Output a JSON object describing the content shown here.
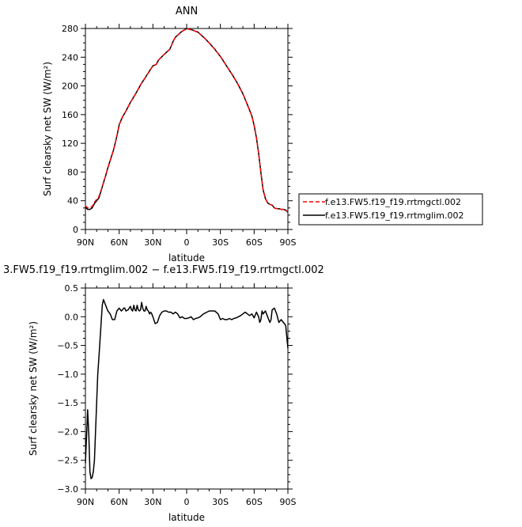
{
  "chart_data": [
    {
      "type": "line",
      "title": "ANN",
      "xlabel": "latitude",
      "ylabel": "Surf clearsky net SW (W/m²)",
      "xlim": [
        90,
        -90
      ],
      "ylim": [
        0,
        280
      ],
      "xticks": [
        90,
        60,
        30,
        0,
        -30,
        -60,
        -90
      ],
      "xtick_labels": [
        "90N",
        "60N",
        "30N",
        "0",
        "30S",
        "60S",
        "90S"
      ],
      "yticks": [
        0,
        40,
        80,
        120,
        160,
        200,
        240,
        280
      ],
      "ytick_labels": [
        "0",
        "40",
        "80",
        "120",
        "160",
        "200",
        "240",
        "280"
      ],
      "legend_position": "right",
      "series": [
        {
          "name": "f.e13.FW5.f19_f19.rrtmgctl.002",
          "color": "#ff0000",
          "dash": "dashed",
          "x": [
            90,
            88,
            86,
            84,
            82,
            80,
            78,
            76,
            74,
            72,
            70,
            68,
            65,
            62,
            60,
            57,
            55,
            50,
            45,
            40,
            37,
            35,
            30,
            27,
            25,
            20,
            15,
            12,
            10,
            7,
            5,
            2,
            0,
            -2,
            -5,
            -8,
            -10,
            -15,
            -20,
            -25,
            -30,
            -35,
            -40,
            -45,
            -50,
            -55,
            -58,
            -60,
            -62,
            -64,
            -66,
            -68,
            -70,
            -72,
            -74,
            -76,
            -78,
            -80,
            -82,
            -84,
            -86,
            -88,
            -90
          ],
          "y": [
            33,
            30,
            30,
            32,
            38,
            42,
            46,
            55,
            65,
            75,
            86,
            96,
            111,
            130,
            146,
            157,
            162,
            177,
            190,
            204,
            211,
            216,
            228,
            230,
            236,
            244,
            251,
            262,
            268,
            272,
            275,
            278,
            280,
            279,
            278,
            276,
            275,
            268,
            260,
            251,
            241,
            229,
            217,
            204,
            189,
            170,
            158,
            145,
            128,
            106,
            79,
            55,
            43,
            37,
            35,
            34,
            30,
            29,
            29,
            28,
            28,
            27,
            25
          ]
        },
        {
          "name": "f.e13.FW5.f19_f19.rrtmglim.002",
          "color": "#000000",
          "dash": "solid",
          "x": [
            90,
            88,
            86,
            84,
            82,
            80,
            78,
            76,
            74,
            72,
            70,
            68,
            65,
            62,
            60,
            57,
            55,
            50,
            45,
            40,
            37,
            35,
            30,
            27,
            25,
            20,
            15,
            12,
            10,
            7,
            5,
            2,
            0,
            -2,
            -5,
            -8,
            -10,
            -15,
            -20,
            -25,
            -30,
            -35,
            -40,
            -45,
            -50,
            -55,
            -58,
            -60,
            -62,
            -64,
            -66,
            -68,
            -70,
            -72,
            -74,
            -76,
            -78,
            -80,
            -82,
            -84,
            -86,
            -88,
            -90
          ],
          "y": [
            31,
            28,
            28,
            30,
            36,
            40,
            44,
            54,
            65,
            75,
            86,
            96,
            111,
            130,
            146,
            157,
            162,
            177,
            190,
            204,
            211,
            216,
            228,
            230,
            236,
            244,
            251,
            262,
            268,
            272,
            275,
            278,
            280,
            279,
            278,
            276,
            275,
            268,
            260,
            251,
            241,
            229,
            217,
            204,
            189,
            170,
            158,
            145,
            128,
            106,
            79,
            55,
            43,
            37,
            35,
            34,
            30,
            29,
            29,
            28,
            28,
            27,
            24
          ]
        }
      ]
    },
    {
      "type": "line",
      "title": "3.FW5.f19_f19.rrtmglim.002 − f.e13.FW5.f19_f19.rrtmgctl.002",
      "xlabel": "latitude",
      "ylabel": "Surf clearsky net SW (W/m²)",
      "xlim": [
        90,
        -90
      ],
      "ylim": [
        -3.0,
        0.5
      ],
      "xticks": [
        90,
        60,
        30,
        0,
        -30,
        -60,
        -90
      ],
      "xtick_labels": [
        "90N",
        "60N",
        "30N",
        "0",
        "30S",
        "60S",
        "90S"
      ],
      "yticks": [
        0.5,
        0.0,
        -0.5,
        -1.0,
        -1.5,
        -2.0,
        -2.5,
        -3.0
      ],
      "ytick_labels": [
        "0.5",
        "0.0",
        "−0.5",
        "−1.0",
        "−1.5",
        "−2.0",
        "−2.5",
        "−3.0"
      ],
      "series": [
        {
          "color": "#000000",
          "x": [
            90,
            89,
            88,
            87,
            86,
            85,
            84,
            83,
            82,
            81,
            80,
            79,
            78,
            77,
            76,
            75,
            74,
            72,
            70,
            68,
            66,
            64,
            62,
            60,
            58,
            57,
            56,
            55,
            54,
            52,
            50,
            49,
            48,
            47,
            46,
            45,
            44,
            43,
            42,
            41,
            40,
            39,
            38,
            37,
            36,
            35,
            34,
            33,
            32,
            31,
            30,
            28,
            26,
            24,
            22,
            20,
            18,
            16,
            14,
            12,
            10,
            8,
            6,
            4,
            2,
            0,
            -2,
            -4,
            -6,
            -8,
            -10,
            -12,
            -15,
            -18,
            -20,
            -22,
            -25,
            -28,
            -30,
            -32,
            -34,
            -36,
            -38,
            -40,
            -42,
            -44,
            -46,
            -48,
            -50,
            -52,
            -54,
            -56,
            -58,
            -60,
            -62,
            -64,
            -65,
            -66,
            -67,
            -68,
            -70,
            -72,
            -74,
            -75,
            -76,
            -78,
            -80,
            -82,
            -84,
            -86,
            -88,
            -90
          ],
          "y": [
            -2.55,
            -2.1,
            -1.62,
            -2.05,
            -2.7,
            -2.82,
            -2.8,
            -2.7,
            -2.5,
            -2.0,
            -1.5,
            -1.0,
            -0.7,
            -0.4,
            -0.1,
            0.2,
            0.3,
            0.2,
            0.1,
            0.05,
            -0.05,
            -0.05,
            0.1,
            0.15,
            0.1,
            0.12,
            0.15,
            0.15,
            0.1,
            0.12,
            0.18,
            0.12,
            0.1,
            0.2,
            0.12,
            0.1,
            0.2,
            0.12,
            0.1,
            0.12,
            0.25,
            0.15,
            0.1,
            0.1,
            0.18,
            0.12,
            0.1,
            0.05,
            0.08,
            0.05,
            0.0,
            -0.12,
            -0.1,
            0.02,
            0.08,
            0.1,
            0.1,
            0.08,
            0.08,
            0.05,
            0.08,
            0.05,
            -0.02,
            0.0,
            -0.03,
            -0.03,
            -0.02,
            0.0,
            -0.05,
            -0.03,
            -0.02,
            0.0,
            0.05,
            0.08,
            0.1,
            0.1,
            0.1,
            0.05,
            -0.05,
            -0.03,
            -0.05,
            -0.05,
            -0.03,
            -0.05,
            -0.03,
            -0.02,
            0.0,
            0.02,
            0.05,
            0.08,
            0.05,
            0.02,
            0.05,
            -0.02,
            0.08,
            0.0,
            -0.1,
            -0.05,
            0.1,
            0.05,
            0.1,
            0.0,
            -0.1,
            -0.05,
            0.12,
            0.15,
            0.05,
            -0.1,
            -0.05,
            -0.1,
            -0.15,
            -0.55
          ]
        }
      ]
    }
  ]
}
